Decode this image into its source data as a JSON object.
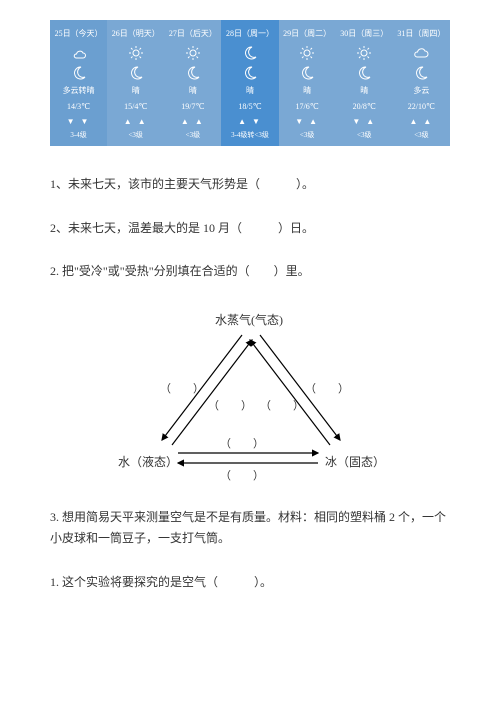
{
  "forecast": {
    "days": [
      {
        "date": "25日（今天）",
        "desc1": "多云转晴",
        "temp": "14/3℃",
        "arrows": "▼ ▼",
        "wind": "3-4级",
        "bg": "#6b9fd0",
        "icon": "cloud-sun"
      },
      {
        "date": "26日（明天）",
        "desc1": "晴",
        "temp": "15/4℃",
        "arrows": "▲ ▲",
        "wind": "<3级",
        "bg": "#7aa8d4",
        "icon": "sun"
      },
      {
        "date": "27日（后天）",
        "desc1": "晴",
        "temp": "19/7℃",
        "arrows": "▲ ▲",
        "wind": "<3级",
        "bg": "#7aa8d4",
        "icon": "sun"
      },
      {
        "date": "28日（周一）",
        "desc1": "晴",
        "temp": "18/5℃",
        "arrows": "▲ ▼",
        "wind": "3-4级转<3级",
        "bg": "#4a8fd0",
        "icon": "moon"
      },
      {
        "date": "29日（周二）",
        "desc1": "晴",
        "temp": "17/6℃",
        "arrows": "▼ ▲",
        "wind": "<3级",
        "bg": "#7aa8d4",
        "icon": "sun"
      },
      {
        "date": "30日（周三）",
        "desc1": "晴",
        "temp": "20/8℃",
        "arrows": "▼ ▲",
        "wind": "<3级",
        "bg": "#7aa8d4",
        "icon": "sun"
      },
      {
        "date": "31日（周四）",
        "desc1": "多云",
        "temp": "22/10℃",
        "arrows": "▲ ▲",
        "wind": "<3级",
        "bg": "#7aa8d4",
        "icon": "cloud"
      }
    ]
  },
  "questions": {
    "q1_1": "1、未来七天，该市的主要天气形势是（　　　）。",
    "q1_2": "2、未来七天，温差最大的是 10 月（　　　）日。",
    "q2": "2. 把\"受冷\"或\"受热\"分别填在合适的（　　）里。",
    "q3": "3. 想用简易天平来测量空气是不是有质量。材料：相同的塑料桶 2 个，一个小皮球和一筒豆子，一支打气筒。",
    "q3_1": "1. 这个实验将要探究的是空气（　　　）。"
  },
  "diagram": {
    "top": "水蒸气(气态)",
    "left": "水（液态）",
    "right": "冰（固态）",
    "blanks": [
      "（　　）",
      "（　　）",
      "（　　）",
      "（　　）",
      "（　　）",
      "（　　）"
    ]
  }
}
